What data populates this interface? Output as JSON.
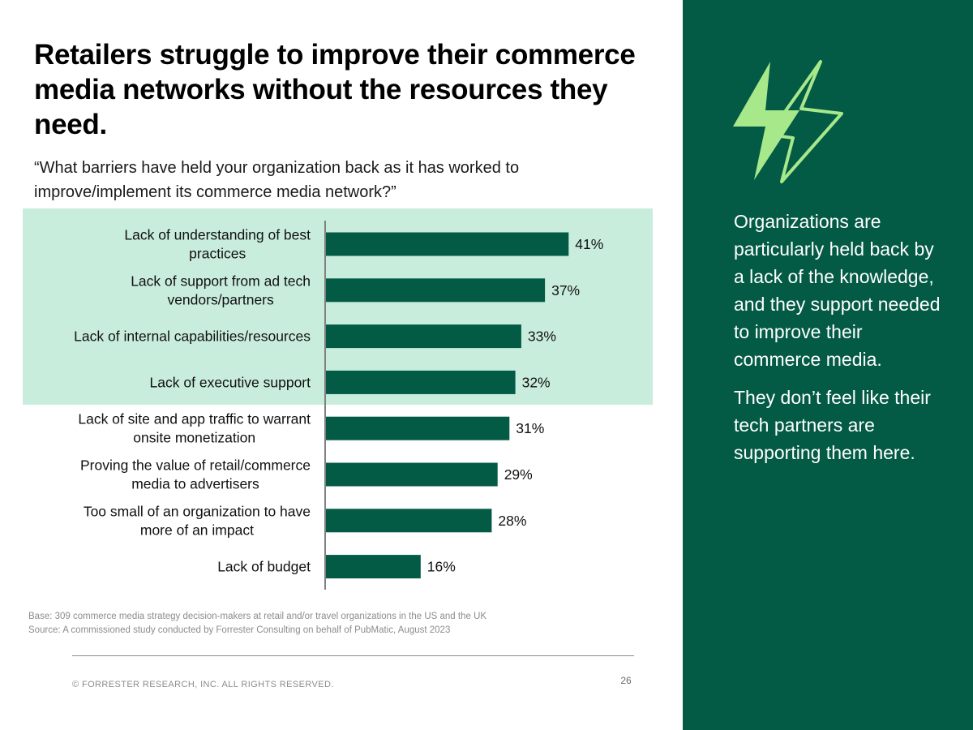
{
  "title": "Retailers struggle to improve their commerce media networks without the resources they need.",
  "question": "“What barriers have held your organization back as it has worked to improve/implement its commerce media network?”",
  "chart_data": {
    "type": "bar",
    "orientation": "horizontal",
    "categories": [
      [
        "Lack of understanding of best",
        "practices"
      ],
      [
        "Lack of support from ad tech",
        "vendors/partners"
      ],
      [
        "Lack of internal capabilities/resources"
      ],
      [
        "Lack of executive support"
      ],
      [
        "Lack of site and app traffic to warrant",
        "onsite monetization"
      ],
      [
        "Proving the value of retail/commerce",
        "media to advertisers"
      ],
      [
        "Too small of an organization to have",
        "more of an impact"
      ],
      [
        "Lack of budget"
      ]
    ],
    "values": [
      41,
      37,
      33,
      32,
      31,
      29,
      28,
      16
    ],
    "value_labels": [
      "41%",
      "37%",
      "33%",
      "32%",
      "31%",
      "29%",
      "28%",
      "16%"
    ],
    "highlighted_rows": [
      0,
      1,
      2,
      3
    ],
    "grid": false,
    "colors": {
      "bar": "#035a45",
      "highlight": "#c9eddd",
      "axis": "#808080"
    }
  },
  "footnotes": {
    "base": "Base: 309 commerce media strategy decision-makers at retail and/or travel organizations in the US and the UK",
    "source": "Source: A commissioned study conducted by Forrester Consulting on behalf of PubMatic, August 2023"
  },
  "footer": {
    "copyright": "© FORRESTER RESEARCH, INC. ALL RIGHTS RESERVED.",
    "page_number": "26"
  },
  "side_panel": {
    "icon": "lightning-bolt-icon",
    "paragraphs": [
      "Organizations are particularly held back by a lack of the knowledge, and they support needed to improve their commerce media.",
      "They don’t feel like their tech partners are supporting them here."
    ],
    "colors": {
      "background": "#035a45",
      "icon": "#a6e88a",
      "text": "#ffffff"
    }
  }
}
